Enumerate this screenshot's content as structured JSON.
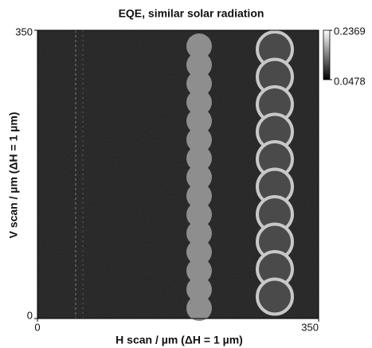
{
  "chart_data": {
    "type": "heatmap",
    "title": "EQE, similar solar radiation",
    "xlabel": "H scan / µm (ΔH = 1 µm)",
    "ylabel": "V scan / µm (ΔH = 1 µm)",
    "xlim": [
      0,
      350
    ],
    "ylim": [
      0,
      350
    ],
    "xticks": [
      0,
      350
    ],
    "yticks": [
      0,
      350
    ],
    "zlim": [
      0.0478,
      0.2369
    ],
    "zticks": [
      0.0478,
      0.2369
    ],
    "colormap": [
      "#000000",
      "#ffffff"
    ]
  }
}
